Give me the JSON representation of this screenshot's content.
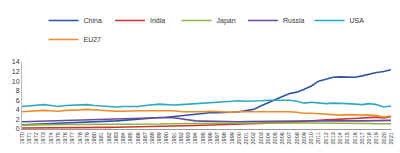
{
  "chart_data": {
    "type": "line",
    "x": [
      1970,
      1971,
      1972,
      1973,
      1974,
      1975,
      1976,
      1977,
      1978,
      1979,
      1980,
      1981,
      1982,
      1983,
      1984,
      1985,
      1986,
      1987,
      1988,
      1989,
      1990,
      1991,
      1992,
      1993,
      1994,
      1995,
      1996,
      1997,
      1998,
      1999,
      2000,
      2001,
      2002,
      2003,
      2004,
      2005,
      2006,
      2007,
      2008,
      2009,
      2010,
      2011,
      2012,
      2013,
      2014,
      2015,
      2016,
      2017,
      2018,
      2019,
      2020,
      2021
    ],
    "series": [
      {
        "name": "China",
        "color": "#2f55a4",
        "values": [
          0.9,
          0.95,
          1.0,
          1.05,
          1.1,
          1.2,
          1.25,
          1.35,
          1.45,
          1.5,
          1.5,
          1.5,
          1.6,
          1.7,
          1.8,
          1.95,
          2.05,
          2.2,
          2.35,
          2.4,
          2.45,
          2.6,
          2.7,
          2.9,
          3.1,
          3.3,
          3.4,
          3.4,
          3.4,
          3.5,
          3.6,
          3.8,
          4.1,
          4.8,
          5.5,
          6.1,
          6.8,
          7.4,
          7.7,
          8.3,
          9.0,
          10.0,
          10.4,
          10.8,
          10.9,
          10.8,
          10.8,
          11.1,
          11.5,
          11.8,
          12.0,
          12.4
        ]
      },
      {
        "name": "India",
        "color": "#c8372d",
        "values": [
          0.2,
          0.2,
          0.2,
          0.2,
          0.22,
          0.24,
          0.25,
          0.27,
          0.28,
          0.3,
          0.3,
          0.32,
          0.34,
          0.36,
          0.38,
          0.42,
          0.45,
          0.48,
          0.52,
          0.56,
          0.6,
          0.64,
          0.67,
          0.7,
          0.74,
          0.78,
          0.82,
          0.86,
          0.88,
          0.94,
          0.98,
          1.0,
          1.02,
          1.06,
          1.12,
          1.18,
          1.26,
          1.36,
          1.46,
          1.6,
          1.7,
          1.76,
          1.9,
          1.96,
          2.1,
          2.14,
          2.2,
          2.3,
          2.44,
          2.48,
          2.3,
          2.6
        ]
      },
      {
        "name": "Japan",
        "color": "#8db23f",
        "values": [
          0.8,
          0.85,
          0.9,
          0.95,
          0.95,
          0.9,
          0.95,
          0.95,
          0.95,
          0.95,
          0.95,
          0.95,
          0.9,
          0.9,
          0.95,
          0.95,
          0.95,
          0.95,
          1.0,
          1.05,
          1.1,
          1.1,
          1.15,
          1.1,
          1.15,
          1.2,
          1.2,
          1.2,
          1.15,
          1.2,
          1.25,
          1.25,
          1.25,
          1.25,
          1.3,
          1.3,
          1.3,
          1.3,
          1.25,
          1.15,
          1.2,
          1.25,
          1.3,
          1.3,
          1.25,
          1.2,
          1.2,
          1.2,
          1.15,
          1.1,
          1.05,
          1.1
        ]
      },
      {
        "name": "Russia",
        "color": "#6b4c9a",
        "values": [
          1.5,
          1.55,
          1.6,
          1.65,
          1.7,
          1.8,
          1.85,
          1.9,
          1.95,
          2.0,
          2.0,
          2.05,
          2.1,
          2.1,
          2.15,
          2.2,
          2.25,
          2.3,
          2.35,
          2.4,
          2.4,
          2.35,
          2.1,
          1.95,
          1.7,
          1.65,
          1.6,
          1.5,
          1.5,
          1.5,
          1.5,
          1.55,
          1.55,
          1.6,
          1.6,
          1.6,
          1.65,
          1.65,
          1.7,
          1.55,
          1.65,
          1.7,
          1.75,
          1.7,
          1.7,
          1.7,
          1.7,
          1.7,
          1.75,
          1.75,
          1.7,
          1.8
        ]
      },
      {
        "name": "USA",
        "color": "#2fa9c2",
        "values": [
          4.7,
          4.8,
          5.0,
          5.1,
          4.9,
          4.7,
          4.9,
          5.0,
          5.1,
          5.1,
          4.9,
          4.8,
          4.6,
          4.6,
          4.7,
          4.7,
          4.7,
          4.9,
          5.1,
          5.2,
          5.1,
          5.0,
          5.1,
          5.2,
          5.3,
          5.3,
          5.5,
          5.6,
          5.6,
          5.7,
          5.9,
          5.8,
          5.8,
          5.9,
          6.0,
          6.0,
          5.9,
          6.0,
          5.8,
          5.4,
          5.6,
          5.5,
          5.3,
          5.4,
          5.4,
          5.3,
          5.2,
          5.1,
          5.3,
          5.1,
          4.6,
          4.8
        ]
      },
      {
        "name": "EU27",
        "color": "#f08c2a",
        "values": [
          3.6,
          3.7,
          3.8,
          3.9,
          3.8,
          3.7,
          3.9,
          3.9,
          4.0,
          4.1,
          4.0,
          3.8,
          3.7,
          3.7,
          3.7,
          3.8,
          3.8,
          3.8,
          3.8,
          3.9,
          3.8,
          3.8,
          3.6,
          3.6,
          3.5,
          3.6,
          3.7,
          3.6,
          3.6,
          3.5,
          3.6,
          3.6,
          3.6,
          3.7,
          3.7,
          3.7,
          3.7,
          3.6,
          3.5,
          3.3,
          3.3,
          3.2,
          3.1,
          3.1,
          2.9,
          3.0,
          3.0,
          3.0,
          2.9,
          2.8,
          2.5,
          2.7
        ]
      }
    ],
    "xlim": [
      1970,
      2021
    ],
    "xticks": [
      1970,
      1971,
      1972,
      1973,
      1974,
      1975,
      1976,
      1977,
      1978,
      1979,
      1980,
      1981,
      1982,
      1983,
      1984,
      1985,
      1986,
      1987,
      1988,
      1989,
      1990,
      1991,
      1992,
      1993,
      1994,
      1995,
      1996,
      1997,
      1998,
      1999,
      2000,
      2001,
      2002,
      2003,
      2004,
      2005,
      2006,
      2007,
      2008,
      2009,
      2010,
      2011,
      2012,
      2013,
      2014,
      2015,
      2016,
      2017,
      2018,
      2019,
      2020,
      2021
    ],
    "ylim": [
      0,
      14
    ],
    "yticks": [
      0,
      2,
      4,
      6,
      8,
      10,
      12,
      14
    ],
    "grid": false,
    "legend": "top"
  }
}
